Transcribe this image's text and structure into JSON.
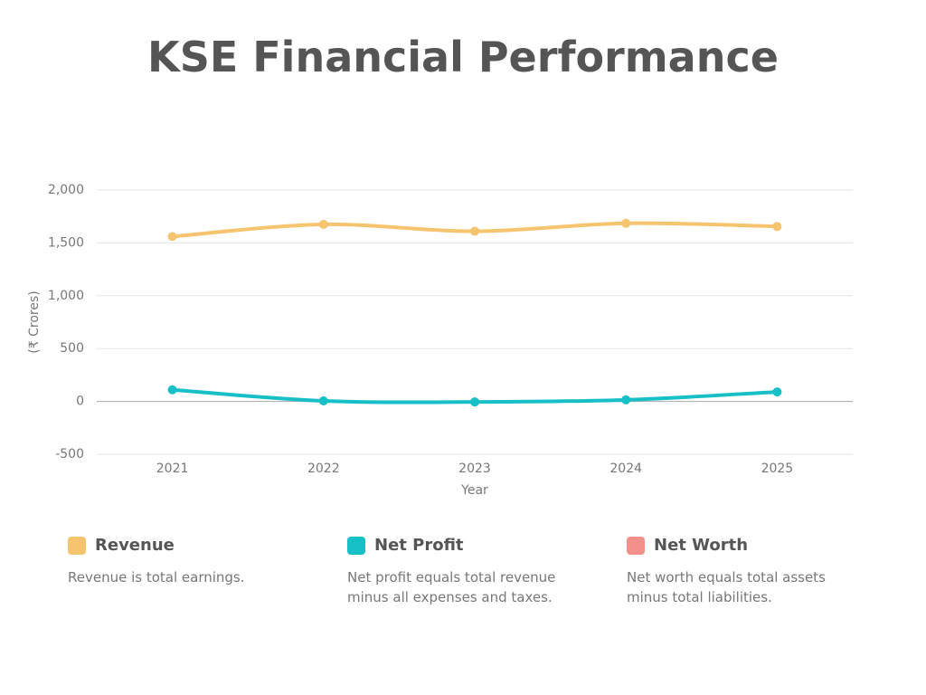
{
  "chart_data": {
    "type": "line",
    "title": "KSE Financial Performance",
    "x_label": "Year",
    "y_label": "(₹ Crores)",
    "categories": [
      "2021",
      "2022",
      "2023",
      "2024",
      "2025"
    ],
    "series": [
      {
        "name": "Revenue",
        "color": "#f6c46f",
        "description": "Revenue is total earnings.",
        "values": [
          1560,
          1675,
          1610,
          1685,
          1655
        ]
      },
      {
        "name": "Net Profit",
        "color": "#17bfc6",
        "description": "Net profit equals total revenue minus all expenses and taxes.",
        "values": [
          110,
          5,
          -5,
          15,
          90
        ]
      },
      {
        "name": "Net Worth",
        "color": "#f4908a",
        "description": "Net worth equals total assets minus total liabilities.",
        "values": [
          null,
          null,
          null,
          null,
          null
        ]
      }
    ],
    "ylim": [
      -500,
      2000
    ],
    "yticks": [
      -500,
      0,
      500,
      {
        "value": 1000,
        "label": "1,000"
      },
      {
        "value": 1500,
        "label": "1,500"
      },
      {
        "value": 2000,
        "label": "2,000"
      }
    ],
    "grid": true
  }
}
